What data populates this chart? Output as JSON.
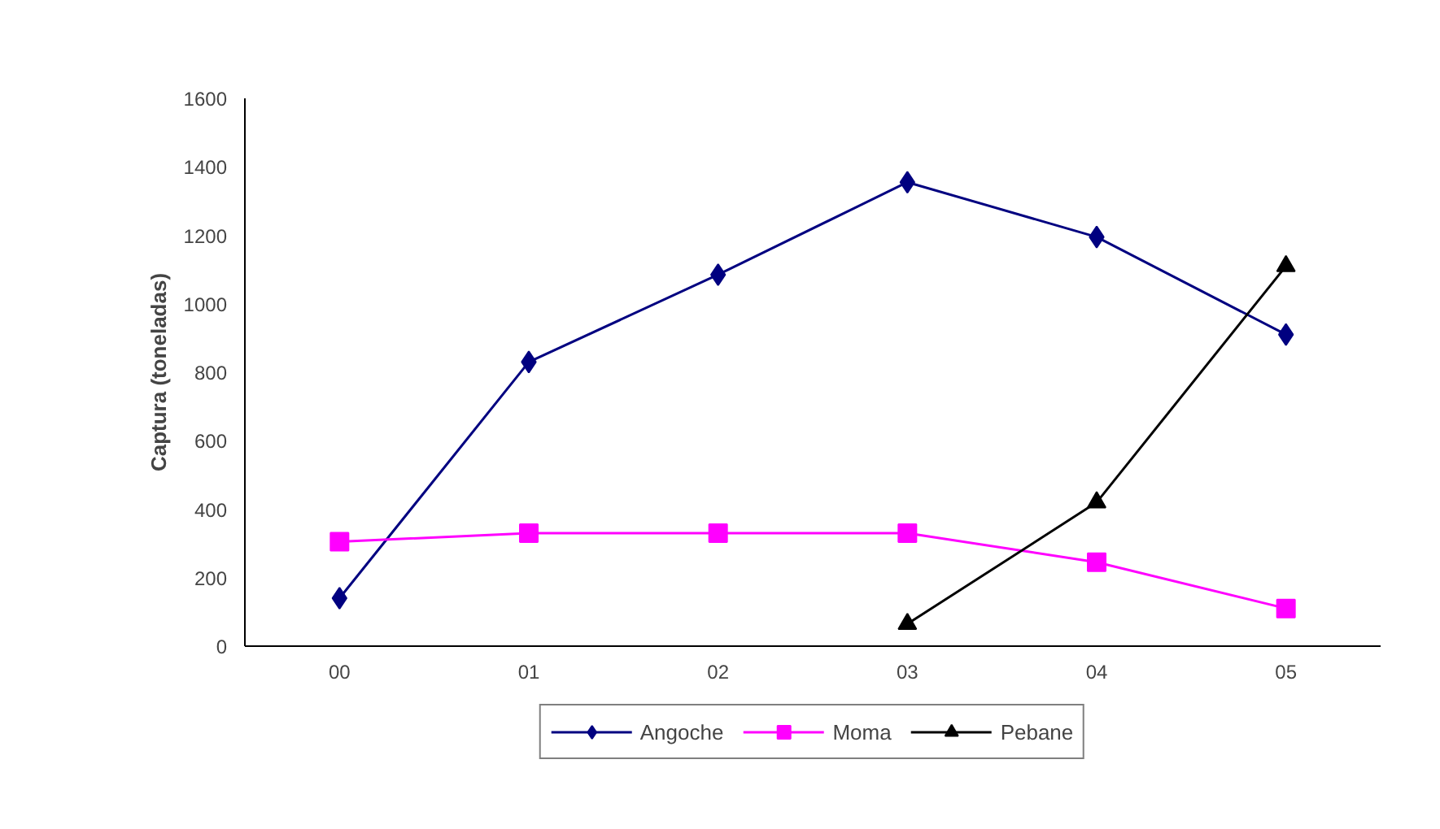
{
  "chart_data": {
    "type": "line",
    "ylabel": "Captura (toneladas)",
    "categories": [
      "00",
      "01",
      "02",
      "03",
      "04",
      "05"
    ],
    "series": [
      {
        "name": "Angoche",
        "color": "#000080",
        "marker": "diamond",
        "values": [
          140,
          830,
          1085,
          1355,
          1195,
          910
        ]
      },
      {
        "name": "Moma",
        "color": "#ff00ff",
        "marker": "square",
        "values": [
          305,
          330,
          330,
          330,
          245,
          110
        ]
      },
      {
        "name": "Pebane",
        "color": "#000000",
        "marker": "triangle",
        "values": [
          null,
          null,
          null,
          65,
          420,
          1110
        ]
      }
    ],
    "ylim": [
      0,
      1600
    ],
    "yticks": [
      0,
      200,
      400,
      600,
      800,
      1000,
      1200,
      1400,
      1600
    ],
    "grid": false,
    "legend": "bottom"
  }
}
